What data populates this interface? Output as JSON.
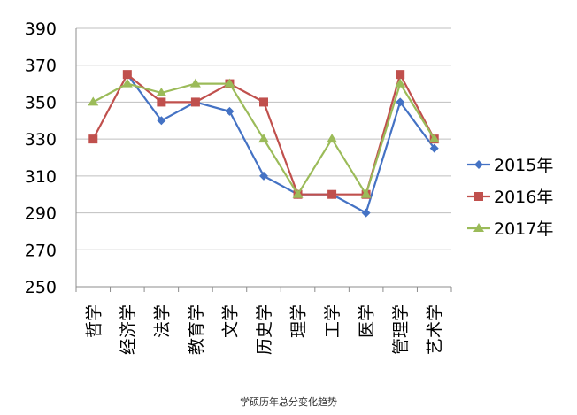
{
  "chart_data": {
    "type": "line",
    "title": "",
    "caption": "学硕历年总分变化趋势",
    "xlabel": "",
    "ylabel": "",
    "ylim": [
      250,
      390
    ],
    "yticks": [
      250,
      270,
      290,
      310,
      330,
      350,
      370,
      390
    ],
    "categories": [
      "哲学",
      "经济学",
      "法学",
      "教育学",
      "文学",
      "历史学",
      "理学",
      "工学",
      "医学",
      "管理学",
      "艺术学"
    ],
    "grid": "horizontal",
    "legend_position": "right",
    "series": [
      {
        "name": "2015年",
        "color": "#4472C4",
        "marker": "diamond",
        "values": [
          null,
          365,
          340,
          350,
          345,
          310,
          300,
          300,
          290,
          350,
          325
        ]
      },
      {
        "name": "2016年",
        "color": "#C0504D",
        "marker": "square",
        "values": [
          330,
          365,
          350,
          350,
          360,
          350,
          300,
          300,
          300,
          365,
          330
        ]
      },
      {
        "name": "2017年",
        "color": "#9BBB59",
        "marker": "triangle",
        "values": [
          350,
          360,
          355,
          360,
          360,
          330,
          300,
          330,
          300,
          360,
          330
        ]
      }
    ]
  }
}
